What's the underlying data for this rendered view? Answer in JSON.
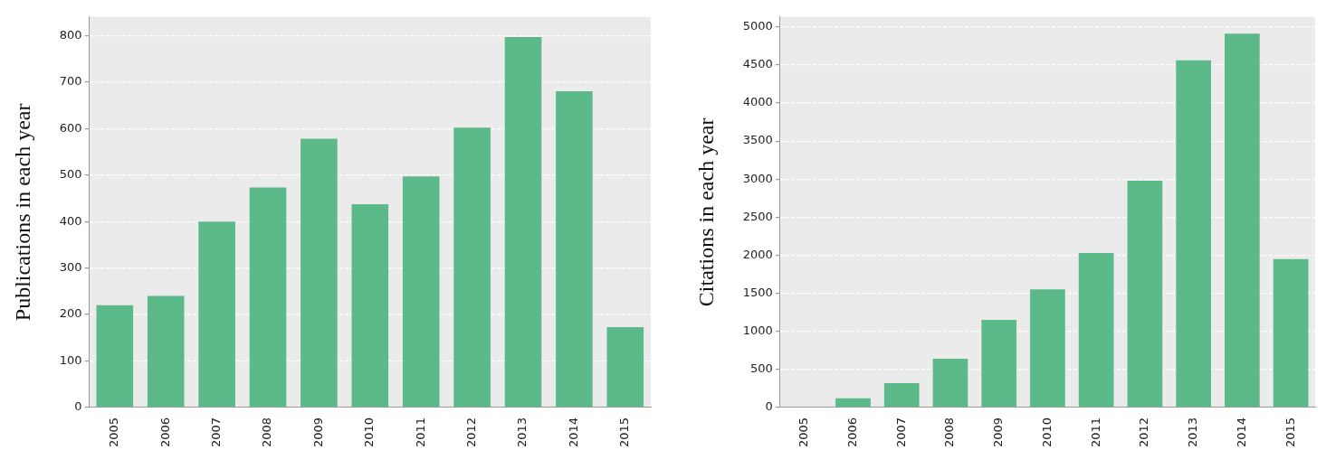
{
  "chart_data": [
    {
      "type": "bar",
      "ylabel": "Publications in each year",
      "categories": [
        "2005",
        "2006",
        "2007",
        "2008",
        "2009",
        "2010",
        "2011",
        "2012",
        "2013",
        "2014",
        "2015"
      ],
      "values": [
        220,
        240,
        400,
        473,
        578,
        437,
        497,
        602,
        797,
        680,
        173
      ],
      "color": "#5cb98a",
      "ylim": [
        0,
        840
      ],
      "yticks": [
        0,
        100,
        200,
        300,
        400,
        500,
        600,
        700,
        800
      ],
      "grid": "y",
      "legend": false
    },
    {
      "type": "bar",
      "ylabel": "Citations in each year",
      "categories": [
        "2005",
        "2006",
        "2007",
        "2008",
        "2009",
        "2010",
        "2011",
        "2012",
        "2013",
        "2014",
        "2015"
      ],
      "values": [
        0,
        120,
        320,
        640,
        1150,
        1550,
        2030,
        2980,
        4560,
        4910,
        1950
      ],
      "color": "#5cb98a",
      "ylim": [
        0,
        5130
      ],
      "yticks": [
        0,
        500,
        1000,
        1500,
        2000,
        2500,
        3000,
        3500,
        4000,
        4500,
        5000
      ],
      "grid": "y",
      "legend": false
    }
  ]
}
